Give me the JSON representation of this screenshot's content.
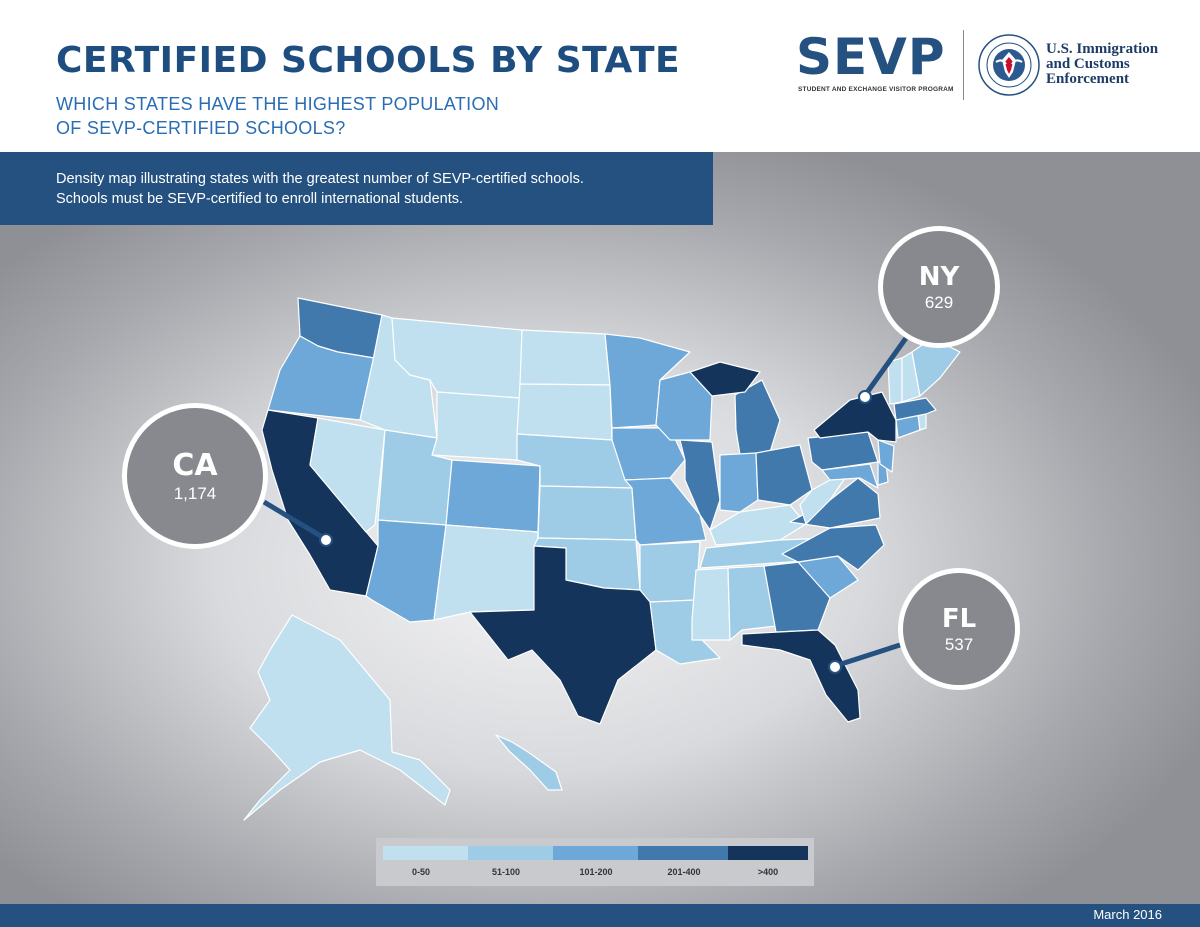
{
  "header": {
    "title": "CERTIFIED SCHOOLS BY STATE",
    "subtitle_line1": "WHICH STATES HAVE THE HIGHEST POPULATION",
    "subtitle_line2": "OF SEVP-CERTIFIED SCHOOLS?",
    "sevp_logo": "SEVP",
    "sevp_tagline": "STUDENT AND EXCHANGE VISITOR PROGRAM",
    "ice_line1": "U.S. Immigration",
    "ice_line2": "and Customs",
    "ice_line3": "Enforcement",
    "seal_icon": "dhs-seal-icon"
  },
  "description": {
    "line1": "Density map illustrating states with the greatest number of SEVP-certified schools.",
    "line2": "Schools must be  SEVP-certified to enroll international students."
  },
  "callouts": [
    {
      "state": "CA",
      "value": "1,174"
    },
    {
      "state": "NY",
      "value": "629"
    },
    {
      "state": "FL",
      "value": "537"
    }
  ],
  "legend": {
    "items": [
      {
        "label": "0-50",
        "color": "#c0dfef"
      },
      {
        "label": "51-100",
        "color": "#9ecbe6"
      },
      {
        "label": "101-200",
        "color": "#6da8d8"
      },
      {
        "label": "201-400",
        "color": "#4279ad"
      },
      {
        "label": ">400",
        "color": "#15345b"
      }
    ]
  },
  "map": {
    "colors": {
      "c1": "#c0dfef",
      "c2": "#9ecbe6",
      "c3": "#6da8d8",
      "c4": "#4279ad",
      "c5": "#15345b",
      "border": "#ffffff"
    }
  },
  "footer": {
    "date": "March 2016"
  }
}
